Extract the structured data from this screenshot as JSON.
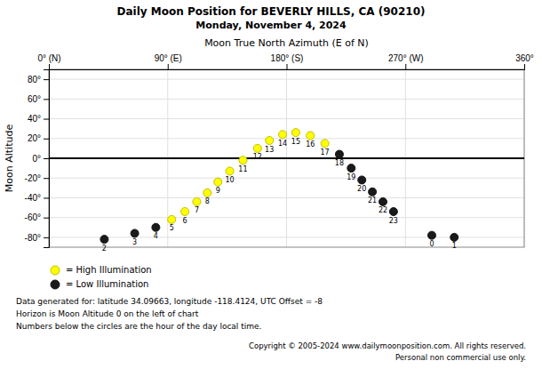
{
  "chart_data": {
    "type": "scatter",
    "title": "Daily Moon Position for BEVERLY HILLS, CA (90210)",
    "subtitle": "Monday, November 4, 2024",
    "x_label": "Moon True North Azimuth (E of N)",
    "y_label": "Moon Altitude",
    "xlim": [
      0,
      360
    ],
    "ylim": [
      -90,
      90
    ],
    "xticks": [
      {
        "value": 0,
        "label": "0° (N)"
      },
      {
        "value": 90,
        "label": "90° (E)"
      },
      {
        "value": 180,
        "label": "180° (S)"
      },
      {
        "value": 270,
        "label": "270° (W)"
      },
      {
        "value": 360,
        "label": "360°"
      }
    ],
    "yticks": [
      {
        "value": -80,
        "label": "-80°"
      },
      {
        "value": -60,
        "label": "-60°"
      },
      {
        "value": -40,
        "label": "-40°"
      },
      {
        "value": -20,
        "label": "-20°"
      },
      {
        "value": 0,
        "label": "0°"
      },
      {
        "value": 20,
        "label": "20°"
      },
      {
        "value": 40,
        "label": "40°"
      },
      {
        "value": 60,
        "label": "60°"
      },
      {
        "value": 80,
        "label": "80°"
      }
    ],
    "grid": true,
    "horizon": 0,
    "series": [
      {
        "name": "= High Illumination",
        "color": "#ffff00",
        "marker": "circle",
        "x": [
          93.0,
          103.0,
          112.0,
          120.0,
          128.0,
          137.0,
          147.0,
          158.0,
          167.0,
          177.0,
          187.0,
          198.0,
          209.0
        ],
        "values": [
          -62.0,
          -54.0,
          -44.0,
          -35.0,
          -24.0,
          -13.0,
          -2.0,
          10.0,
          18.0,
          24.0,
          26.0,
          23.0,
          15.0
        ],
        "hours": [
          5,
          6,
          7,
          8,
          9,
          10,
          11,
          12,
          13,
          14,
          15,
          16,
          17
        ]
      },
      {
        "name": "= Low Illumination",
        "color": "#1a1a1a",
        "marker": "circle",
        "x": [
          290.0,
          307.0,
          42.0,
          65.0,
          81.0,
          220.0,
          229.0,
          237.0,
          245.0,
          253.0,
          261.0
        ],
        "values": [
          -78.0,
          -80.0,
          -82.0,
          -76.0,
          -70.0,
          4.0,
          -10.0,
          -22.0,
          -34.0,
          -44.0,
          -54.0
        ],
        "hours": [
          0,
          1,
          2,
          3,
          4,
          18,
          19,
          20,
          21,
          22,
          23
        ]
      }
    ],
    "notes": [
      "Data generated for: latitude 34.09663, longitude -118.4124, UTC Offset = -8",
      "Horizon is Moon Altitude 0 on the left of chart",
      "Numbers below the circles are the hour of the day local time."
    ],
    "copyright": [
      "Copyright © 2005-2024 www.dailymoonposition.com. All rights reserved.",
      "Personal non commercial use only."
    ]
  }
}
